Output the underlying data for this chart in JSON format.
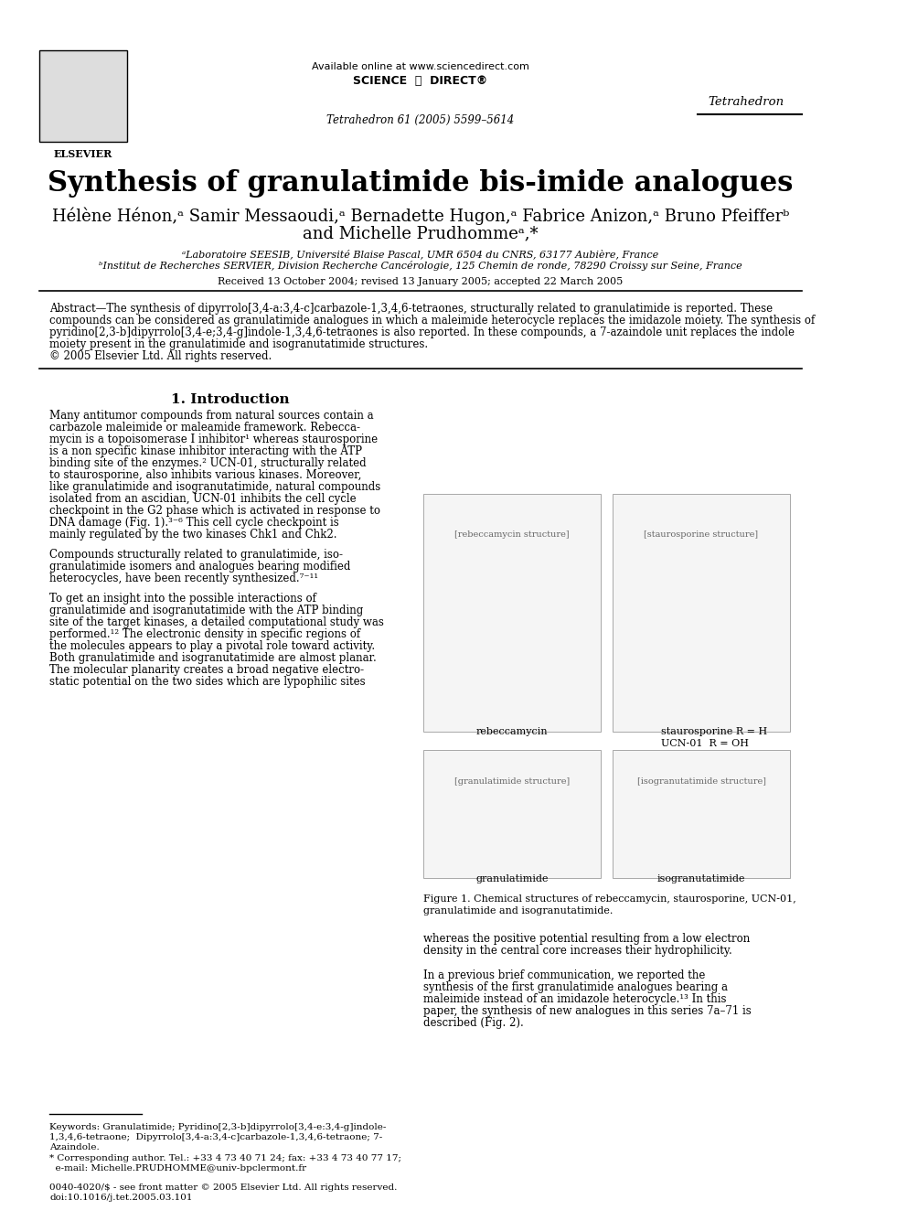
{
  "title": "Synthesis of granulatimide bis-imide analogues",
  "journal": "Tetrahedron",
  "journal_vol": "Tetrahedron 61 (2005) 5599–5614",
  "available_online": "Available online at www.sciencedirect.com",
  "science_direct": "SCIENCE DIRECT®",
  "authors_line1": "Hélène Hénon,ᵃ Samir Messaoudi,ᵃ Bernadette Hugon,ᵃ Fabrice Anizon,ᵃ Bruno Pfeifferᵇ",
  "authors_line2": "and Michelle Prudhommeᵃ,*",
  "affil_a": "ᵃLaboratoire SEESIB, Université Blaise Pascal, UMR 6504 du CNRS, 63177 Aubière, France",
  "affil_b": "ᵇInstitut de Recherches SERVIER, Division Recherche Cancérologie, 125 Chemin de ronde, 78290 Croissy sur Seine, France",
  "received": "Received 13 October 2004; revised 13 January 2005; accepted 22 March 2005",
  "abstract_title": "Abstract",
  "abstract_text": "The synthesis of dipyrrolo[3,4-a:3,4-c]carbazole-1,3,4,6-tetraones, structurally related to granulatimide is reported. These compounds can be considered as granulatimide analogues in which a maleimide heterocycle replaces the imidazole moiety. The synthesis of pyridino[2,3-b]dipyrrolo[3,4-e;3,4-g]indole-1,3,4,6-tetraones is also reported. In these compounds, a 7-azaindole unit replaces the indole moiety present in the granulatimide and isogranutatimide structures.\n© 2005 Elsevier Ltd. All rights reserved.",
  "section1_title": "1. Introduction",
  "section1_para1": "Many antitumor compounds from natural sources contain a carbazole maleimide or maleamide framework. Rebecca-mycin is a topoisomerase I inhibitor¹ whereas staurosporine is a non specific kinase inhibitor interacting with the ATP binding site of the enzymes.² UCN-01, structurally related to staurosporine, also inhibits various kinases. Moreover, like granulatimide and isogranutatimide, natural compounds isolated from an ascidian, UCN-01 inhibits the cell cycle checkpoint in the G2 phase which is activated in response to DNA damage (Fig. 1).³⁻⁶ This cell cycle checkpoint is mainly regulated by the two kinases Chk1 and Chk2.",
  "section1_para2": "Compounds structurally related to granulatimide, iso-granulatimide isomers and analogues bearing modified heterocycles, have been recently synthesized.⁷⁻¹¹",
  "section1_para3": "To get an insight into the possible interactions of granulatimide and isogranutatimide with the ATP binding site of the target kinases, a detailed computational study was performed.¹² The electronic density in specific regions of the molecules appears to play a pivotal role toward activity. Both granulatimide and isogranutatimide are almost planar. The molecular planarity creates a broad negative electro-static potential on the two sides which are lypophilic sites",
  "fig1_caption": "Figure 1. Chemical structures of rebeccamycin, staurosporine, UCN-01, granulatimide and isogranutatimide.",
  "whereas_text": "whereas the positive potential resulting from a low electron density in the central core increases their hydrophilicity.",
  "previous_text": "In a previous brief communication, we reported the synthesis of the first granulatimide analogues bearing a maleimide instead of an imidazole heterocycle.¹³ In this paper, the synthesis of new analogues in this series 7a–71 is described (Fig. 2).",
  "keywords_text": "Keywords: Granulatimide; Pyridino[2,3-b]dipyrrolo[3,4-e:3,4-g]indole-1,3,4,6-tetraone; Dipyrrolo[3,4-a:3,4-c]carbazole-1,3,4,6-tetraone; 7-Azaindole.",
  "corresponding_text": "* Corresponding author. Tel.: +33 4 73 40 71 24; fax: +33 4 73 40 77 17;\n  e-mail: Michelle.PRUDHOMME@univ-bpclermont.fr",
  "copyright_text": "0040-4020/$ - see front matter © 2005 Elsevier Ltd. All rights reserved.\ndoi:10.1016/j.tet.2005.03.101",
  "bg_color": "#ffffff",
  "text_color": "#000000",
  "blue_color": "#0000cc"
}
